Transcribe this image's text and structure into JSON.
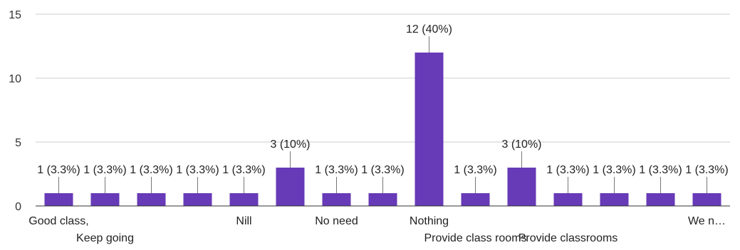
{
  "chart_data": {
    "type": "bar",
    "title": "",
    "xlabel": "",
    "ylabel": "",
    "ylim": [
      0,
      15
    ],
    "yticks": [
      0,
      5,
      10,
      15
    ],
    "grid": true,
    "legend": "none",
    "bar_color": "#673ab7",
    "categories": [
      "Good class,",
      "Keep going",
      "",
      "",
      "Nill",
      "",
      "No need",
      "",
      "Nothing",
      "Provide class rooms",
      "",
      "Provide classrooms",
      "",
      "",
      "We n…"
    ],
    "values": [
      1,
      1,
      1,
      1,
      1,
      3,
      1,
      1,
      12,
      1,
      3,
      1,
      1,
      1,
      1
    ],
    "data_labels": [
      "1 (3.3%)",
      "1 (3.3%)",
      "1 (3.3%)",
      "1 (3.3%)",
      "1 (3.3%)",
      "3 (10%)",
      "1 (3.3%)",
      "1 (3.3%)",
      "12 (40%)",
      "1 (3.3%)",
      "3 (10%)",
      "1 (3.3%)",
      "1 (3.3%)",
      "1 (3.3%)",
      "1 (3.3%)"
    ]
  }
}
